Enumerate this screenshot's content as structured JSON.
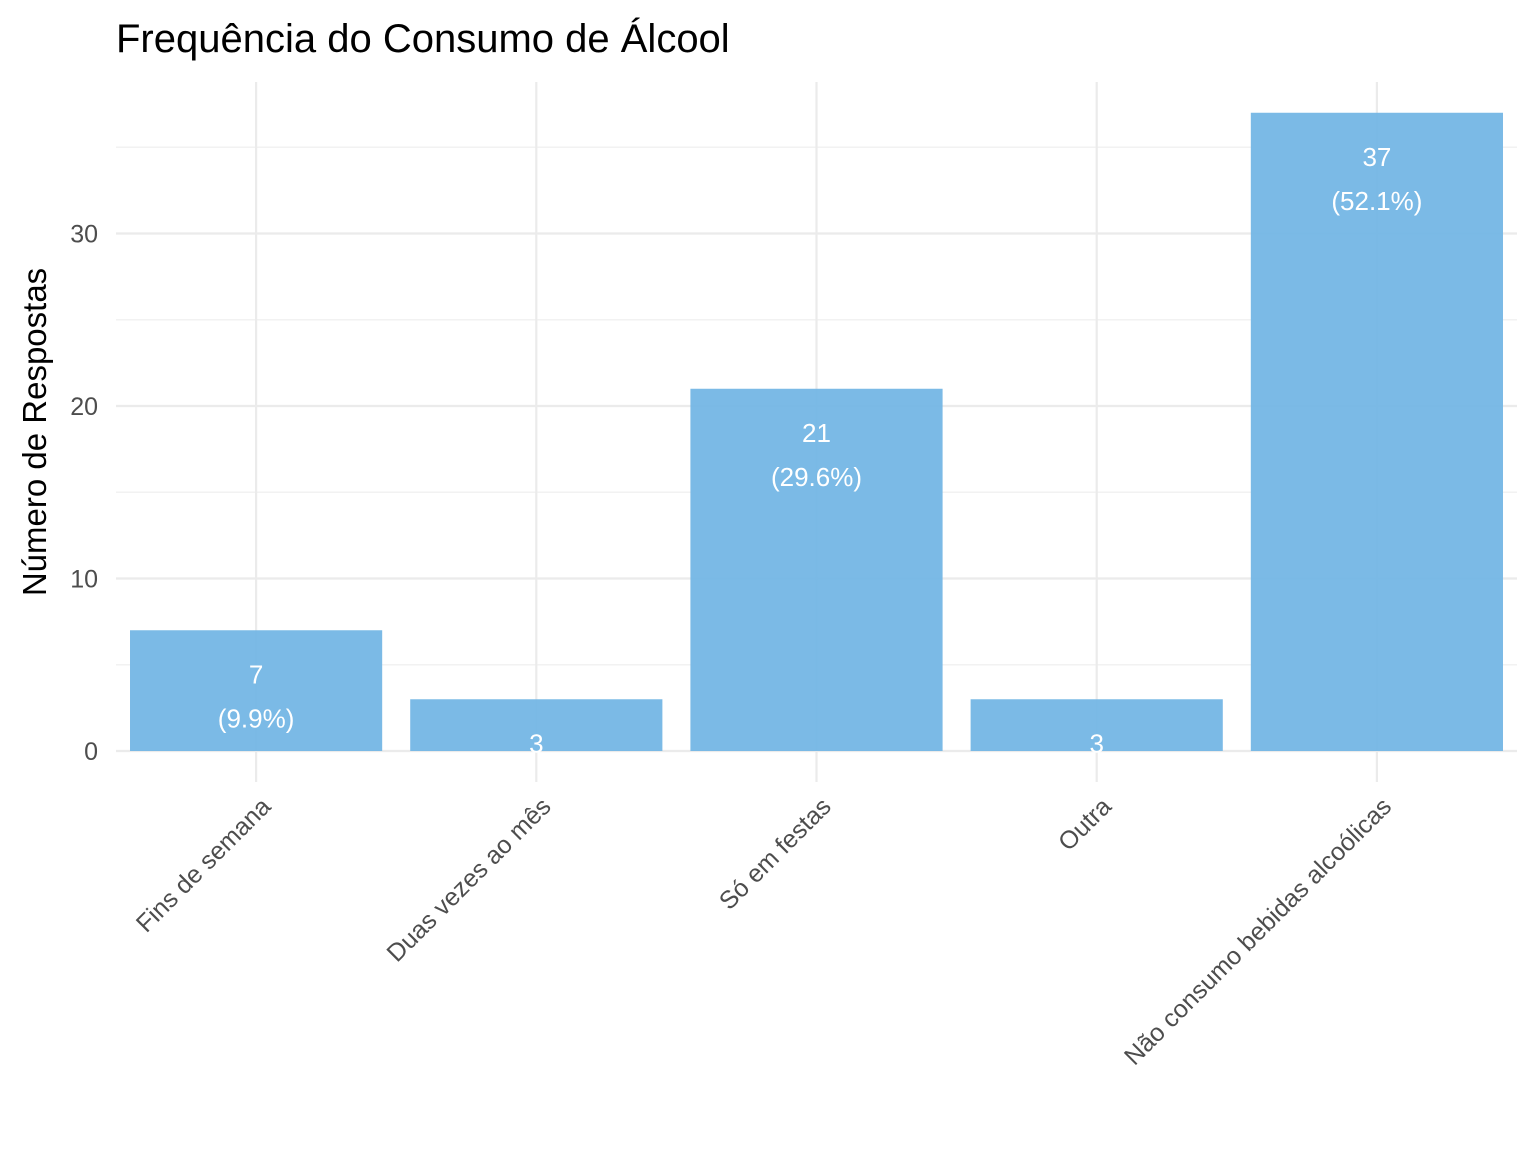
{
  "chart_data": {
    "type": "bar",
    "title": "Frequência do Consumo de Álcool",
    "xlabel": "",
    "ylabel": "Número de Respostas",
    "categories": [
      "Fins de semana",
      "Duas vezes ao mês",
      "Só em festas",
      "Outra",
      "Não consumo bebidas alcoólicas"
    ],
    "values": [
      7,
      3,
      21,
      3,
      37
    ],
    "labels": [
      {
        "count": "7",
        "pct": "(9.9%)"
      },
      {
        "count": "3",
        "pct": ""
      },
      {
        "count": "21",
        "pct": "(29.6%)"
      },
      {
        "count": "3",
        "pct": ""
      },
      {
        "count": "37",
        "pct": "(52.1%)"
      }
    ],
    "yticks": [
      0,
      10,
      20,
      30
    ],
    "ylim": [
      -1.6,
      38.8
    ],
    "grid": true,
    "bar_color": "#74B6E5",
    "legend": "none"
  }
}
